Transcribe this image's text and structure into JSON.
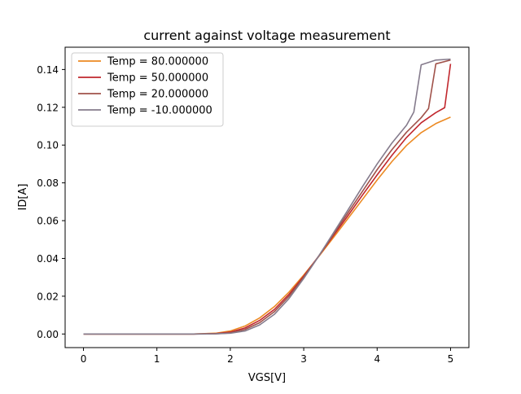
{
  "chart_data": {
    "type": "line",
    "title": "current against voltage measurement",
    "xlabel": "VGS[V]",
    "ylabel": "ID[A]",
    "xlim": [
      -0.25,
      5.25
    ],
    "ylim": [
      -0.0072,
      0.1518
    ],
    "xticks": [
      0,
      1,
      2,
      3,
      4,
      5
    ],
    "xtick_labels": [
      "0",
      "1",
      "2",
      "3",
      "4",
      "5"
    ],
    "yticks": [
      0.0,
      0.02,
      0.04,
      0.06,
      0.08,
      0.1,
      0.12,
      0.14
    ],
    "ytick_labels": [
      "0.00",
      "0.02",
      "0.04",
      "0.06",
      "0.08",
      "0.10",
      "0.12",
      "0.14"
    ],
    "grid": false,
    "legend_position": "upper-left",
    "series": [
      {
        "name": "Temp = 80.000000",
        "color": "#ec8a23",
        "x": [
          0,
          1,
          1.5,
          1.8,
          2.0,
          2.2,
          2.4,
          2.6,
          2.8,
          3.0,
          3.2,
          3.4,
          3.6,
          3.8,
          4.0,
          4.2,
          4.4,
          4.6,
          4.8,
          5.0
        ],
        "y": [
          0,
          0,
          0,
          0.0004,
          0.0016,
          0.0042,
          0.0085,
          0.0145,
          0.0222,
          0.0312,
          0.0408,
          0.0508,
          0.061,
          0.0712,
          0.0815,
          0.0912,
          0.0998,
          0.1066,
          0.1114,
          0.1148
        ]
      },
      {
        "name": "Temp = 50.000000",
        "color": "#c1272d",
        "x": [
          0,
          1,
          1.5,
          1.8,
          2.0,
          2.2,
          2.4,
          2.6,
          2.8,
          3.0,
          3.2,
          3.4,
          3.6,
          3.8,
          4.0,
          4.2,
          4.4,
          4.6,
          4.8,
          4.92,
          5.0
        ],
        "y": [
          0,
          0,
          0,
          0.0002,
          0.001,
          0.0032,
          0.0072,
          0.013,
          0.021,
          0.0306,
          0.041,
          0.0518,
          0.0625,
          0.0735,
          0.0842,
          0.0945,
          0.104,
          0.1118,
          0.1172,
          0.1198,
          0.143
        ]
      },
      {
        "name": "Temp = 20.000000",
        "color": "#a0524a",
        "x": [
          0,
          1,
          1.5,
          1.8,
          2.0,
          2.2,
          2.4,
          2.6,
          2.8,
          3.0,
          3.2,
          3.4,
          3.6,
          3.8,
          4.0,
          4.2,
          4.4,
          4.6,
          4.7,
          4.8,
          5.0
        ],
        "y": [
          0,
          0,
          0,
          0.0001,
          0.0006,
          0.0024,
          0.006,
          0.0118,
          0.02,
          0.03,
          0.041,
          0.0525,
          0.064,
          0.0755,
          0.087,
          0.0975,
          0.1068,
          0.1145,
          0.1193,
          0.143,
          0.145
        ]
      },
      {
        "name": "Temp = -10.000000",
        "color": "#857b8c",
        "x": [
          0,
          1,
          1.5,
          1.8,
          2.0,
          2.2,
          2.4,
          2.6,
          2.8,
          3.0,
          3.2,
          3.4,
          3.6,
          3.8,
          4.0,
          4.2,
          4.4,
          4.5,
          4.6,
          4.8,
          5.0
        ],
        "y": [
          0,
          0,
          0,
          0.0001,
          0.0004,
          0.0016,
          0.0048,
          0.0104,
          0.0188,
          0.0294,
          0.041,
          0.0532,
          0.0655,
          0.078,
          0.09,
          0.101,
          0.1105,
          0.1175,
          0.1425,
          0.145,
          0.1455
        ]
      }
    ]
  }
}
